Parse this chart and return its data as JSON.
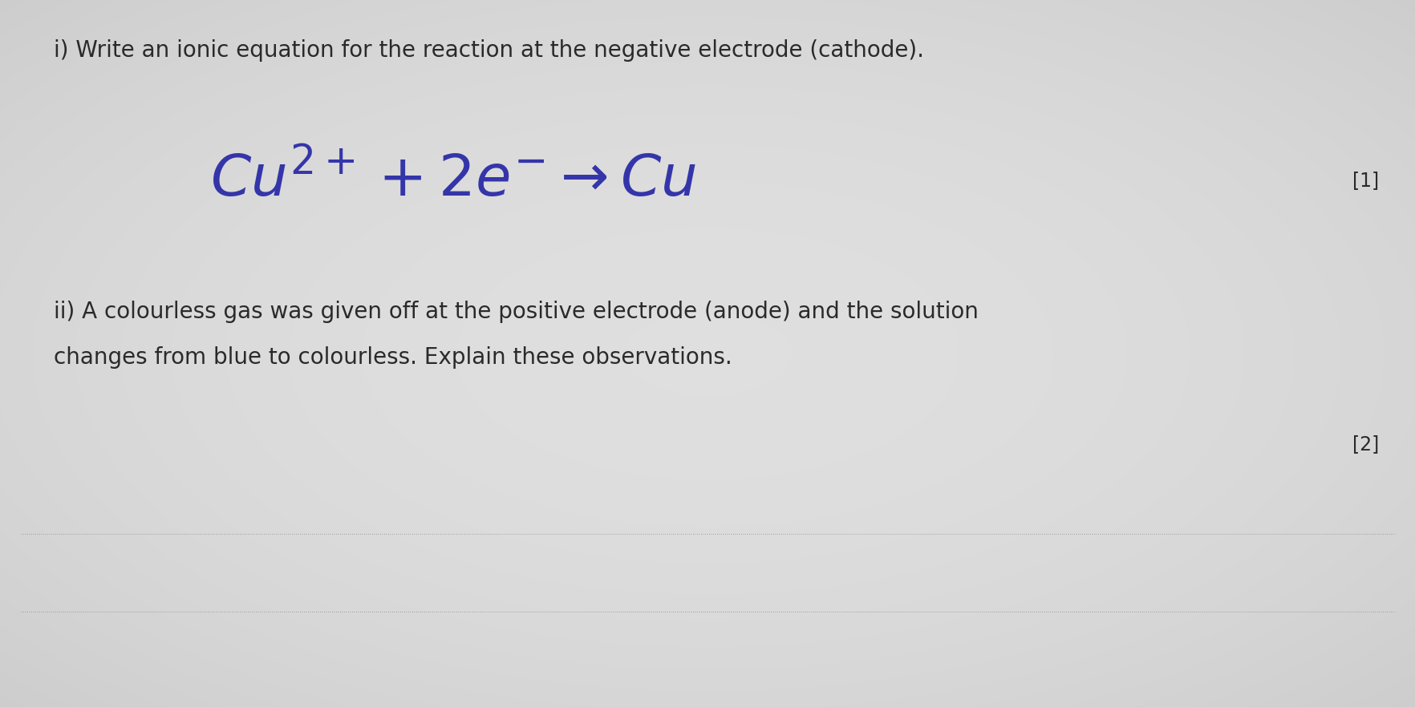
{
  "bg_color": "#d8d8d8",
  "bg_color_light": "#e8e8e8",
  "title_i": "i) Write an ionic equation for the reaction at the negative electrode (cathode).",
  "mark_i": "[1]",
  "title_ii_line1": "ii) A colourless gas was given off at the positive electrode (anode) and the solution",
  "title_ii_line2": "changes from blue to colourless. Explain these observations.",
  "mark_ii": "[2]",
  "text_color": "#2a2a2a",
  "handwritten_color": "#3535aa",
  "mark_color": "#2a2a2a",
  "line_color": "#888888",
  "font_size_body": 20,
  "font_size_handwritten": 52,
  "font_size_superscript": 28,
  "font_size_marks": 17
}
